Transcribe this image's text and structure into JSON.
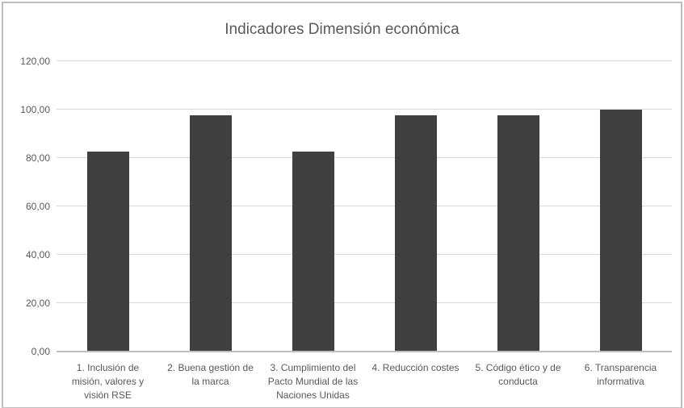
{
  "window": {
    "background": "#ffffff",
    "border_color": "#bdbdbd"
  },
  "chart_data": {
    "type": "bar",
    "title": "Indicadores Dimensión económica",
    "xlabel": "",
    "ylabel": "",
    "ylim": [
      0,
      120
    ],
    "grid": true,
    "legend": false,
    "y_ticks": [
      {
        "value": 120,
        "label": "120,00"
      },
      {
        "value": 100,
        "label": "100,00"
      },
      {
        "value": 80,
        "label": "80,00"
      },
      {
        "value": 60,
        "label": "60,00"
      },
      {
        "value": 40,
        "label": "40,00"
      },
      {
        "value": 20,
        "label": "20,00"
      },
      {
        "value": 0,
        "label": "0,00"
      }
    ],
    "categories": [
      "1. Inclusión de misión, valores y visión RSE",
      "2. Buena gestión de la marca",
      "3. Cumplimiento del Pacto Mundial de las Naciones Unidas",
      "4. Reducción costes",
      "5. Código ético y de conducta",
      "6. Transparencia informativa"
    ],
    "category_lines": [
      [
        "1. Inclusión de",
        "misión, valores y",
        "visión RSE"
      ],
      [
        "2. Buena gestión de",
        "la marca"
      ],
      [
        "3. Cumplimiento del",
        "Pacto Mundial de las",
        "Naciones Unidas"
      ],
      [
        "4. Reducción costes"
      ],
      [
        "5. Código ético y de",
        "conducta"
      ],
      [
        "6. Transparencia",
        "informativa"
      ]
    ],
    "values": [
      82.3,
      97.2,
      82.3,
      97.2,
      97.2,
      99.7
    ],
    "colors": {
      "bar": "#3f3f3f",
      "gridline": "#d9d9d9",
      "axis_line": "#bfbfbf",
      "text": "#595959"
    }
  }
}
